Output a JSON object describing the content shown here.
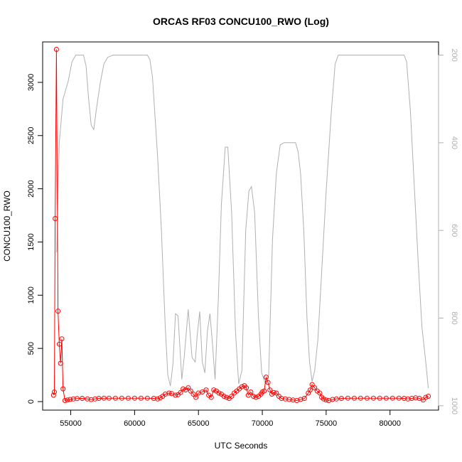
{
  "chart_data": {
    "type": "line",
    "title": "ORCAS RF03 CONCU100_RWO (Log)",
    "xlabel": "UTC Seconds",
    "ylabel": "CONCU100_RWO",
    "xlim": [
      52800,
      83800
    ],
    "ylim": [
      -80,
      3380
    ],
    "y2lim": [
      1010,
      170
    ],
    "x_ticks": [
      55000,
      60000,
      65000,
      70000,
      75000,
      80000
    ],
    "y_ticks": [
      0,
      500,
      1000,
      1500,
      2000,
      2500,
      3000
    ],
    "y2_ticks": [
      200,
      400,
      600,
      800,
      1000
    ],
    "grid": false,
    "colors": {
      "primary": "#ff0000",
      "secondary": "#b0b0b0",
      "frame": "#000000"
    },
    "series": [
      {
        "axis": "left",
        "style": "line+circle",
        "points": [
          [
            53650,
            60
          ],
          [
            53720,
            90
          ],
          [
            53780,
            1720
          ],
          [
            53880,
            3310
          ],
          [
            54000,
            850
          ],
          [
            54100,
            540
          ],
          [
            54200,
            360
          ],
          [
            54300,
            590
          ],
          [
            54400,
            120
          ],
          [
            54550,
            10
          ],
          [
            54750,
            15
          ],
          [
            54950,
            20
          ],
          [
            55200,
            25
          ],
          [
            55500,
            28
          ],
          [
            55900,
            30
          ],
          [
            56300,
            25
          ],
          [
            56600,
            18
          ],
          [
            56900,
            25
          ],
          [
            57200,
            30
          ],
          [
            57600,
            32
          ],
          [
            58000,
            32
          ],
          [
            58500,
            32
          ],
          [
            59000,
            32
          ],
          [
            59500,
            32
          ],
          [
            60000,
            32
          ],
          [
            60500,
            32
          ],
          [
            61000,
            32
          ],
          [
            61500,
            30
          ],
          [
            61800,
            25
          ],
          [
            62000,
            35
          ],
          [
            62200,
            50
          ],
          [
            62400,
            70
          ],
          [
            62700,
            80
          ],
          [
            62900,
            75
          ],
          [
            63200,
            60
          ],
          [
            63400,
            65
          ],
          [
            63600,
            85
          ],
          [
            63800,
            120
          ],
          [
            64000,
            110
          ],
          [
            64200,
            130
          ],
          [
            64400,
            100
          ],
          [
            64600,
            70
          ],
          [
            64800,
            40
          ],
          [
            65000,
            80
          ],
          [
            65300,
            90
          ],
          [
            65600,
            110
          ],
          [
            65800,
            60
          ],
          [
            66000,
            40
          ],
          [
            66200,
            110
          ],
          [
            66400,
            100
          ],
          [
            66600,
            80
          ],
          [
            66800,
            70
          ],
          [
            67000,
            50
          ],
          [
            67200,
            40
          ],
          [
            67400,
            30
          ],
          [
            67600,
            50
          ],
          [
            67800,
            80
          ],
          [
            68000,
            100
          ],
          [
            68200,
            120
          ],
          [
            68400,
            140
          ],
          [
            68600,
            150
          ],
          [
            68750,
            130
          ],
          [
            68900,
            60
          ],
          [
            69100,
            90
          ],
          [
            69300,
            50
          ],
          [
            69500,
            40
          ],
          [
            69700,
            50
          ],
          [
            69900,
            70
          ],
          [
            70000,
            90
          ],
          [
            70150,
            100
          ],
          [
            70300,
            230
          ],
          [
            70450,
            180
          ],
          [
            70600,
            110
          ],
          [
            70750,
            70
          ],
          [
            70900,
            85
          ],
          [
            71100,
            80
          ],
          [
            71300,
            50
          ],
          [
            71500,
            30
          ],
          [
            71800,
            25
          ],
          [
            72100,
            20
          ],
          [
            72400,
            15
          ],
          [
            72700,
            10
          ],
          [
            73000,
            20
          ],
          [
            73300,
            30
          ],
          [
            73600,
            80
          ],
          [
            73750,
            110
          ],
          [
            73900,
            160
          ],
          [
            74100,
            130
          ],
          [
            74300,
            100
          ],
          [
            74500,
            80
          ],
          [
            74650,
            40
          ],
          [
            74800,
            25
          ],
          [
            75000,
            15
          ],
          [
            75200,
            10
          ],
          [
            75500,
            20
          ],
          [
            75800,
            25
          ],
          [
            76200,
            30
          ],
          [
            76700,
            32
          ],
          [
            77200,
            32
          ],
          [
            77700,
            32
          ],
          [
            78200,
            32
          ],
          [
            78700,
            32
          ],
          [
            79200,
            32
          ],
          [
            79700,
            32
          ],
          [
            80200,
            32
          ],
          [
            80700,
            32
          ],
          [
            81100,
            30
          ],
          [
            81400,
            25
          ],
          [
            81700,
            30
          ],
          [
            82000,
            35
          ],
          [
            82300,
            30
          ],
          [
            82600,
            15
          ],
          [
            82800,
            40
          ],
          [
            83000,
            50
          ]
        ]
      },
      {
        "axis": "right",
        "style": "line",
        "points": [
          [
            53900,
            650
          ],
          [
            54100,
            400
          ],
          [
            54400,
            300
          ],
          [
            54800,
            260
          ],
          [
            55100,
            215
          ],
          [
            55400,
            200
          ],
          [
            55700,
            200
          ],
          [
            56000,
            200
          ],
          [
            56200,
            225
          ],
          [
            56400,
            300
          ],
          [
            56600,
            360
          ],
          [
            56800,
            370
          ],
          [
            57000,
            325
          ],
          [
            57300,
            265
          ],
          [
            57600,
            220
          ],
          [
            57900,
            205
          ],
          [
            58300,
            200
          ],
          [
            59000,
            200
          ],
          [
            59800,
            200
          ],
          [
            60600,
            200
          ],
          [
            61000,
            200
          ],
          [
            61200,
            210
          ],
          [
            61400,
            250
          ],
          [
            61800,
            430
          ],
          [
            62100,
            600
          ],
          [
            62400,
            820
          ],
          [
            62600,
            930
          ],
          [
            62800,
            955
          ],
          [
            63000,
            905
          ],
          [
            63200,
            790
          ],
          [
            63400,
            795
          ],
          [
            63700,
            940
          ],
          [
            63900,
            885
          ],
          [
            64200,
            780
          ],
          [
            64500,
            890
          ],
          [
            64750,
            900
          ],
          [
            64900,
            840
          ],
          [
            65100,
            785
          ],
          [
            65300,
            900
          ],
          [
            65500,
            925
          ],
          [
            65700,
            830
          ],
          [
            65900,
            790
          ],
          [
            66100,
            860
          ],
          [
            66300,
            940
          ],
          [
            66550,
            760
          ],
          [
            66800,
            540
          ],
          [
            67100,
            410
          ],
          [
            67300,
            410
          ],
          [
            67600,
            560
          ],
          [
            67900,
            830
          ],
          [
            68150,
            950
          ],
          [
            68400,
            920
          ],
          [
            68700,
            600
          ],
          [
            68950,
            510
          ],
          [
            69150,
            500
          ],
          [
            69400,
            560
          ],
          [
            69700,
            800
          ],
          [
            69950,
            925
          ],
          [
            70250,
            950
          ],
          [
            70500,
            930
          ],
          [
            70800,
            620
          ],
          [
            71100,
            470
          ],
          [
            71400,
            405
          ],
          [
            71700,
            400
          ],
          [
            72100,
            400
          ],
          [
            72600,
            400
          ],
          [
            72800,
            420
          ],
          [
            73000,
            470
          ],
          [
            73250,
            600
          ],
          [
            73500,
            800
          ],
          [
            73700,
            900
          ],
          [
            73900,
            945
          ],
          [
            74100,
            920
          ],
          [
            74350,
            850
          ],
          [
            74600,
            720
          ],
          [
            75000,
            510
          ],
          [
            75400,
            330
          ],
          [
            75700,
            220
          ],
          [
            75950,
            200
          ],
          [
            76500,
            200
          ],
          [
            77500,
            200
          ],
          [
            78500,
            200
          ],
          [
            79500,
            200
          ],
          [
            80500,
            200
          ],
          [
            81100,
            200
          ],
          [
            81300,
            215
          ],
          [
            81600,
            330
          ],
          [
            81900,
            500
          ],
          [
            82200,
            670
          ],
          [
            82500,
            820
          ],
          [
            82800,
            900
          ],
          [
            83000,
            960
          ]
        ]
      }
    ]
  }
}
